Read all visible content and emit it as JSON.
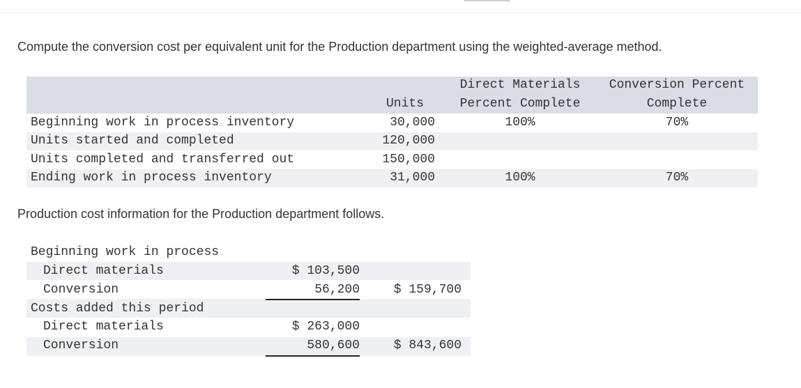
{
  "question": "Compute the conversion cost per equivalent unit for the Production department using the weighted-average method.",
  "units_table": {
    "headers": {
      "units": "Units",
      "dm": "Direct Materials Percent Complete",
      "conv": "Conversion Percent Complete"
    },
    "rows": [
      {
        "label": "Beginning work in process inventory",
        "units": "30,000",
        "dm": "100%",
        "conv": "70%"
      },
      {
        "label": "Units started and completed",
        "units": "120,000"
      },
      {
        "label": "Units completed and transferred out",
        "units": "150,000"
      },
      {
        "label": "Ending work in process inventory",
        "units": "31,000",
        "dm": "100%",
        "conv": "70%"
      }
    ]
  },
  "cost_info": {
    "intro": "Production cost information for the Production department follows.",
    "sections": [
      {
        "title": "Beginning work in process",
        "items": [
          {
            "label": "Direct materials",
            "amount": "$ 103,500"
          },
          {
            "label": "Conversion",
            "amount": "56,200",
            "total": "$ 159,700"
          }
        ]
      },
      {
        "title": "Costs added this period",
        "items": [
          {
            "label": "Direct materials",
            "amount": "$ 263,000"
          },
          {
            "label": "Conversion",
            "amount": "580,600",
            "total": "$ 843,600"
          }
        ]
      }
    ]
  }
}
